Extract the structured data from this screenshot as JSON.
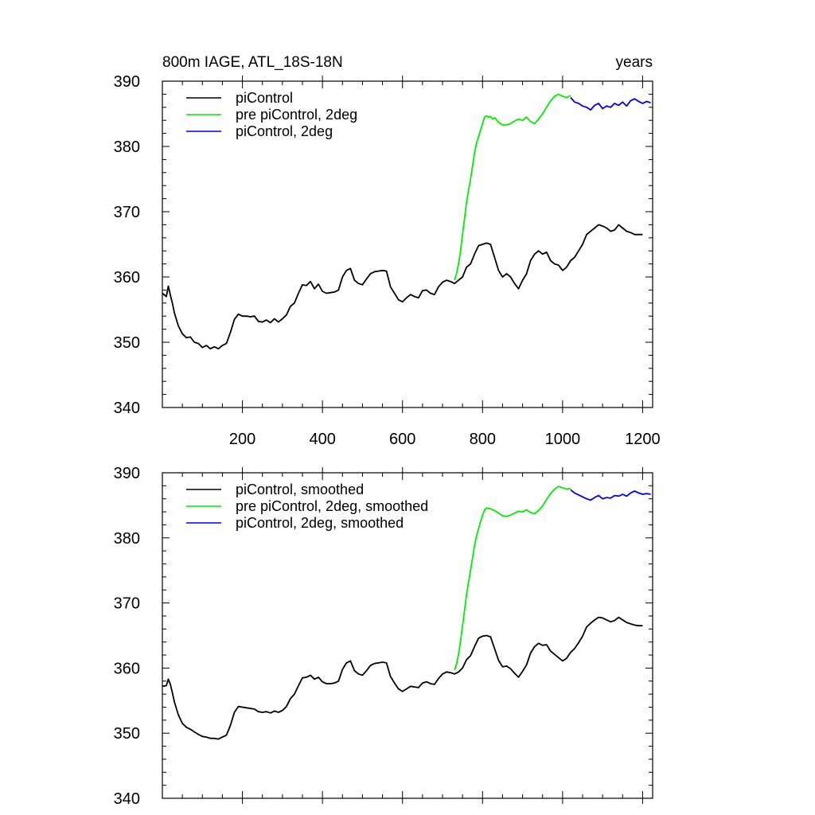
{
  "figure": {
    "title_left": "800m IAGE, ATL_18S-18N",
    "title_right": "years"
  },
  "chart_data": [
    {
      "type": "line",
      "panel": "top",
      "xlim": [
        0,
        1225
      ],
      "ylim": [
        340,
        390
      ],
      "xticks": [
        200,
        400,
        600,
        800,
        1000,
        1200
      ],
      "xtick_labels": [
        "200",
        "400",
        "600",
        "800",
        "1000",
        "1200"
      ],
      "yticks": [
        340,
        350,
        360,
        370,
        380,
        390
      ],
      "ytick_labels": [
        "340",
        "350",
        "360",
        "370",
        "380",
        "390"
      ],
      "legend_position": "top-left",
      "series": [
        {
          "name": "piControl",
          "color": "#000000",
          "x": [
            0,
            10,
            15,
            20,
            25,
            30,
            40,
            50,
            60,
            70,
            80,
            90,
            100,
            110,
            120,
            130,
            140,
            150,
            160,
            170,
            180,
            190,
            200,
            210,
            220,
            230,
            240,
            250,
            260,
            270,
            280,
            290,
            300,
            310,
            320,
            330,
            340,
            350,
            360,
            370,
            380,
            390,
            400,
            410,
            420,
            430,
            440,
            450,
            460,
            470,
            480,
            490,
            500,
            510,
            520,
            530,
            540,
            550,
            560,
            570,
            580,
            590,
            600,
            610,
            620,
            630,
            640,
            650,
            660,
            670,
            680,
            690,
            700,
            710,
            720,
            730,
            740,
            750,
            760,
            770,
            780,
            790,
            800,
            810,
            820,
            830,
            840,
            850,
            860,
            870,
            880,
            890,
            900,
            910,
            920,
            930,
            940,
            950,
            960,
            970,
            980,
            990,
            1000,
            1010,
            1020,
            1030,
            1040,
            1050,
            1060,
            1070,
            1080,
            1090,
            1100,
            1110,
            1120,
            1130,
            1140,
            1150,
            1160,
            1170,
            1180,
            1190,
            1200
          ],
          "values": [
            357.5,
            357.0,
            358.6,
            357.2,
            356.0,
            354.5,
            352.5,
            351.3,
            350.7,
            350.8,
            350.0,
            349.8,
            349.2,
            349.5,
            349.0,
            349.3,
            349.0,
            349.5,
            349.8,
            351.5,
            353.5,
            354.3,
            354.0,
            354.0,
            353.9,
            354.0,
            353.2,
            353.1,
            353.4,
            353.0,
            353.6,
            353.1,
            353.6,
            354.2,
            355.5,
            356.0,
            357.5,
            358.8,
            358.7,
            359.3,
            358.2,
            358.9,
            357.8,
            357.5,
            357.6,
            357.7,
            358.0,
            360.0,
            361.0,
            361.3,
            359.5,
            359.0,
            358.8,
            359.7,
            360.5,
            360.8,
            360.9,
            361.0,
            360.9,
            358.5,
            357.5,
            356.5,
            356.2,
            356.8,
            357.3,
            357.0,
            356.8,
            357.9,
            358.0,
            357.5,
            357.3,
            358.5,
            359.2,
            359.5,
            359.3,
            359.0,
            359.5,
            360.0,
            361.5,
            362.0,
            363.5,
            364.8,
            365.0,
            365.2,
            365.0,
            363.0,
            361.0,
            360.0,
            360.5,
            360.0,
            359.0,
            358.2,
            359.5,
            360.5,
            362.5,
            363.5,
            364.0,
            363.5,
            363.8,
            362.5,
            362.0,
            361.8,
            361.0,
            361.5,
            362.5,
            363.0,
            364.0,
            365.0,
            366.5,
            367.0,
            367.5,
            368.0,
            367.8,
            367.5,
            367.0,
            367.2,
            368.0,
            367.5,
            367.0,
            366.8,
            366.5,
            366.5,
            366.5
          ]
        },
        {
          "name": "pre piControl, 2deg",
          "color": "#00ee00",
          "x": [
            730,
            735,
            740,
            745,
            750,
            755,
            760,
            765,
            770,
            775,
            780,
            785,
            790,
            795,
            800,
            805,
            810,
            815,
            820,
            825,
            830,
            840,
            850,
            860,
            870,
            880,
            890,
            900,
            910,
            920,
            930,
            940,
            950,
            960,
            970,
            980,
            990,
            1000,
            1010,
            1020
          ],
          "values": [
            359.5,
            360.5,
            362.0,
            364.0,
            366.5,
            369.0,
            371.5,
            373.3,
            375.0,
            377.0,
            379.0,
            380.5,
            381.5,
            382.5,
            383.5,
            384.5,
            384.7,
            384.5,
            384.6,
            384.2,
            384.4,
            383.7,
            383.3,
            383.3,
            383.5,
            383.9,
            384.2,
            384.0,
            384.5,
            383.8,
            383.5,
            384.2,
            385.0,
            386.0,
            387.0,
            387.7,
            388.0,
            387.7,
            387.5,
            387.8
          ]
        },
        {
          "name": "piControl, 2deg",
          "color": "#0000ee",
          "x": [
            1020,
            1030,
            1040,
            1050,
            1060,
            1070,
            1080,
            1090,
            1100,
            1110,
            1120,
            1130,
            1140,
            1150,
            1160,
            1170,
            1180,
            1190,
            1200,
            1210,
            1220
          ],
          "values": [
            387.5,
            386.8,
            386.6,
            386.2,
            386.0,
            385.6,
            386.3,
            386.6,
            385.8,
            386.2,
            386.0,
            386.6,
            386.3,
            386.8,
            386.2,
            387.0,
            387.3,
            386.9,
            386.6,
            386.9,
            386.7
          ]
        }
      ]
    },
    {
      "type": "line",
      "panel": "bottom",
      "xlim": [
        0,
        1225
      ],
      "ylim": [
        340,
        390
      ],
      "xticks": [
        200,
        400,
        600,
        800,
        1000,
        1200
      ],
      "yticks": [
        340,
        350,
        360,
        370,
        380,
        390
      ],
      "ytick_labels": [
        "340",
        "350",
        "360",
        "370",
        "380",
        "390"
      ],
      "legend_position": "top-left",
      "series": [
        {
          "name": "piControl, smoothed",
          "color": "#000000",
          "x": [
            0,
            10,
            15,
            20,
            25,
            30,
            40,
            50,
            60,
            70,
            80,
            90,
            100,
            110,
            120,
            130,
            140,
            150,
            160,
            170,
            180,
            190,
            200,
            210,
            220,
            230,
            240,
            250,
            260,
            270,
            280,
            290,
            300,
            310,
            320,
            330,
            340,
            350,
            360,
            370,
            380,
            390,
            400,
            410,
            420,
            430,
            440,
            450,
            460,
            470,
            480,
            490,
            500,
            510,
            520,
            530,
            540,
            550,
            560,
            570,
            580,
            590,
            600,
            610,
            620,
            630,
            640,
            650,
            660,
            670,
            680,
            690,
            700,
            710,
            720,
            730,
            740,
            750,
            760,
            770,
            780,
            790,
            800,
            810,
            820,
            830,
            840,
            850,
            860,
            870,
            880,
            890,
            900,
            910,
            920,
            930,
            940,
            950,
            960,
            970,
            980,
            990,
            1000,
            1010,
            1020,
            1030,
            1040,
            1050,
            1060,
            1070,
            1080,
            1090,
            1100,
            1110,
            1120,
            1130,
            1140,
            1150,
            1160,
            1170,
            1180,
            1190,
            1200
          ],
          "values": [
            357.2,
            357.3,
            358.3,
            357.5,
            356.2,
            354.8,
            352.8,
            351.5,
            350.9,
            350.6,
            350.2,
            349.8,
            349.5,
            349.4,
            349.2,
            349.2,
            349.1,
            349.4,
            349.7,
            351.2,
            353.2,
            354.1,
            354.0,
            353.9,
            353.8,
            353.7,
            353.3,
            353.2,
            353.3,
            353.1,
            353.4,
            353.2,
            353.5,
            354.1,
            355.3,
            356.0,
            357.3,
            358.5,
            358.6,
            358.9,
            358.3,
            358.6,
            357.9,
            357.6,
            357.6,
            357.7,
            358.0,
            359.8,
            360.8,
            361.1,
            359.6,
            359.1,
            358.9,
            359.6,
            360.4,
            360.7,
            360.8,
            360.9,
            360.8,
            358.7,
            357.7,
            356.8,
            356.4,
            356.8,
            357.2,
            357.1,
            357.0,
            357.7,
            357.9,
            357.6,
            357.5,
            358.4,
            359.1,
            359.4,
            359.3,
            359.1,
            359.4,
            360.0,
            361.3,
            361.9,
            363.3,
            364.6,
            364.9,
            365.0,
            364.8,
            363.0,
            361.2,
            360.2,
            360.3,
            359.9,
            359.2,
            358.6,
            359.5,
            360.5,
            362.3,
            363.3,
            363.8,
            363.5,
            363.6,
            362.6,
            362.1,
            361.6,
            361.1,
            361.5,
            362.4,
            363.0,
            363.9,
            364.9,
            366.3,
            366.9,
            367.4,
            367.8,
            367.7,
            367.4,
            367.1,
            367.3,
            367.8,
            367.4,
            367.0,
            366.8,
            366.6,
            366.5,
            366.5
          ]
        },
        {
          "name": "pre piControl, 2deg, smoothed",
          "color": "#00ee00",
          "x": [
            730,
            735,
            740,
            745,
            750,
            755,
            760,
            765,
            770,
            775,
            780,
            785,
            790,
            795,
            800,
            805,
            810,
            815,
            820,
            825,
            830,
            840,
            850,
            860,
            870,
            880,
            890,
            900,
            910,
            920,
            930,
            940,
            950,
            960,
            970,
            980,
            990,
            1000,
            1010,
            1020
          ],
          "values": [
            359.7,
            360.6,
            362.1,
            364.1,
            366.4,
            368.9,
            371.3,
            373.2,
            375.0,
            376.9,
            378.8,
            380.3,
            381.4,
            382.5,
            383.5,
            384.3,
            384.6,
            384.5,
            384.5,
            384.3,
            384.2,
            383.8,
            383.4,
            383.3,
            383.5,
            383.8,
            384.1,
            384.0,
            384.3,
            383.9,
            383.7,
            384.2,
            384.9,
            385.9,
            386.8,
            387.5,
            387.9,
            387.7,
            387.5,
            387.6
          ]
        },
        {
          "name": "piControl, 2deg, smoothed",
          "color": "#0000ee",
          "x": [
            1020,
            1030,
            1040,
            1050,
            1060,
            1070,
            1080,
            1090,
            1100,
            1110,
            1120,
            1130,
            1140,
            1150,
            1160,
            1170,
            1180,
            1190,
            1200,
            1210,
            1220
          ],
          "values": [
            387.4,
            386.9,
            386.6,
            386.3,
            386.0,
            385.8,
            386.2,
            386.5,
            386.0,
            386.2,
            386.1,
            386.5,
            386.4,
            386.7,
            386.4,
            386.9,
            387.2,
            386.9,
            386.7,
            386.8,
            386.7
          ]
        }
      ]
    }
  ]
}
